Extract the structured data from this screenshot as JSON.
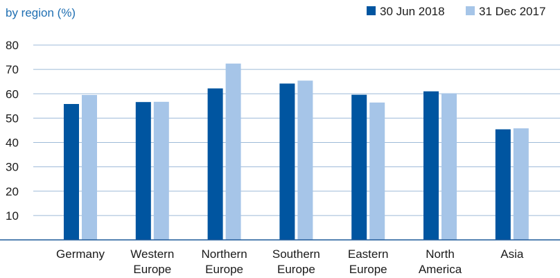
{
  "chart_data": {
    "type": "bar",
    "subtitle": "by region (%)",
    "categories": [
      [
        "Germany"
      ],
      [
        "Western",
        "Europe"
      ],
      [
        "Northern",
        "Europe"
      ],
      [
        "Southern",
        "Europe"
      ],
      [
        "Eastern",
        "Europe"
      ],
      [
        "North",
        "America"
      ],
      [
        "Asia"
      ]
    ],
    "series": [
      {
        "name": "30 Jun 2018",
        "color": "#0055a0",
        "values": [
          55.8,
          56.6,
          62.2,
          64.2,
          59.6,
          61.0,
          45.4
        ]
      },
      {
        "name": "31 Dec 2017",
        "color": "#a6c5e8",
        "values": [
          59.5,
          56.7,
          72.4,
          65.4,
          56.4,
          60.2,
          45.8
        ]
      }
    ],
    "yticks": [
      10,
      20,
      30,
      40,
      50,
      60,
      70,
      80
    ],
    "ylim": [
      0,
      80
    ],
    "grid": true,
    "legend": "top-right"
  }
}
